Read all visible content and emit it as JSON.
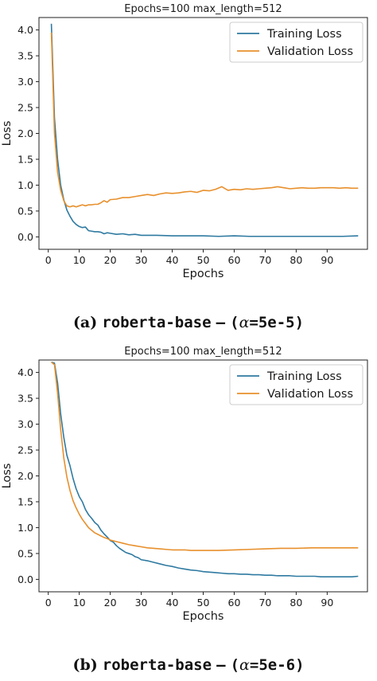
{
  "chart_data": [
    {
      "type": "line",
      "title": "Epochs=100   max_length=512",
      "xlabel": "Epochs",
      "ylabel": "Loss",
      "xlim": [
        -3,
        103
      ],
      "ylim": [
        -0.24,
        4.24
      ],
      "xticks": [
        0,
        10,
        20,
        30,
        40,
        50,
        60,
        70,
        80,
        90
      ],
      "yticks": [
        0.0,
        0.5,
        1.0,
        1.5,
        2.0,
        2.5,
        3.0,
        3.5,
        4.0
      ],
      "grid": false,
      "legend_position": "top-right",
      "series": [
        {
          "name": "Training Loss",
          "color": "#2f7aa1",
          "x": [
            1,
            2,
            3,
            4,
            5,
            6,
            7,
            8,
            9,
            10,
            11,
            12,
            13,
            14,
            15,
            16,
            17,
            18,
            19,
            20,
            22,
            24,
            26,
            28,
            30,
            35,
            40,
            45,
            50,
            55,
            60,
            65,
            70,
            75,
            80,
            85,
            90,
            95,
            100
          ],
          "y": [
            4.12,
            2.3,
            1.5,
            1.0,
            0.72,
            0.52,
            0.4,
            0.3,
            0.24,
            0.2,
            0.18,
            0.19,
            0.12,
            0.11,
            0.1,
            0.1,
            0.09,
            0.06,
            0.08,
            0.07,
            0.05,
            0.06,
            0.04,
            0.05,
            0.03,
            0.03,
            0.02,
            0.02,
            0.02,
            0.01,
            0.02,
            0.01,
            0.01,
            0.01,
            0.01,
            0.01,
            0.01,
            0.01,
            0.02
          ]
        },
        {
          "name": "Validation Loss",
          "color": "#e8902d",
          "x": [
            1,
            2,
            3,
            4,
            5,
            6,
            7,
            8,
            9,
            10,
            11,
            12,
            13,
            14,
            15,
            16,
            17,
            18,
            19,
            20,
            22,
            24,
            26,
            28,
            30,
            32,
            34,
            36,
            38,
            40,
            42,
            44,
            46,
            48,
            50,
            52,
            54,
            56,
            58,
            60,
            62,
            64,
            66,
            68,
            70,
            72,
            74,
            76,
            78,
            80,
            82,
            84,
            86,
            88,
            90,
            92,
            94,
            96,
            98,
            100
          ],
          "y": [
            3.95,
            2.0,
            1.25,
            0.9,
            0.7,
            0.6,
            0.58,
            0.6,
            0.58,
            0.6,
            0.62,
            0.6,
            0.62,
            0.62,
            0.63,
            0.63,
            0.66,
            0.7,
            0.67,
            0.72,
            0.73,
            0.76,
            0.76,
            0.78,
            0.8,
            0.82,
            0.8,
            0.83,
            0.85,
            0.84,
            0.85,
            0.87,
            0.88,
            0.86,
            0.9,
            0.89,
            0.92,
            0.97,
            0.9,
            0.92,
            0.91,
            0.93,
            0.92,
            0.93,
            0.94,
            0.95,
            0.97,
            0.95,
            0.93,
            0.94,
            0.95,
            0.94,
            0.94,
            0.95,
            0.95,
            0.95,
            0.94,
            0.95,
            0.94,
            0.94
          ]
        }
      ]
    },
    {
      "type": "line",
      "title": "Epochs=100   max_length=512",
      "xlabel": "Epochs",
      "ylabel": "Loss",
      "xlim": [
        -3,
        103
      ],
      "ylim": [
        -0.24,
        4.24
      ],
      "xticks": [
        0,
        10,
        20,
        30,
        40,
        50,
        60,
        70,
        80,
        90
      ],
      "yticks": [
        0.0,
        0.5,
        1.0,
        1.5,
        2.0,
        2.5,
        3.0,
        3.5,
        4.0
      ],
      "grid": false,
      "legend_position": "top-right",
      "series": [
        {
          "name": "Training Loss",
          "color": "#2f7aa1",
          "x": [
            1,
            2,
            3,
            4,
            5,
            6,
            7,
            8,
            9,
            10,
            11,
            12,
            13,
            14,
            15,
            16,
            17,
            18,
            19,
            20,
            21,
            22,
            23,
            24,
            25,
            26,
            27,
            28,
            29,
            30,
            32,
            34,
            36,
            38,
            40,
            42,
            44,
            46,
            48,
            50,
            52,
            54,
            56,
            58,
            60,
            62,
            64,
            66,
            68,
            70,
            72,
            74,
            76,
            78,
            80,
            82,
            84,
            86,
            88,
            90,
            92,
            94,
            96,
            98,
            100
          ],
          "y": [
            4.2,
            4.18,
            3.8,
            3.2,
            2.75,
            2.4,
            2.2,
            1.95,
            1.75,
            1.6,
            1.5,
            1.35,
            1.25,
            1.18,
            1.1,
            1.05,
            0.95,
            0.88,
            0.82,
            0.75,
            0.72,
            0.65,
            0.6,
            0.56,
            0.52,
            0.5,
            0.48,
            0.44,
            0.42,
            0.38,
            0.36,
            0.33,
            0.3,
            0.27,
            0.25,
            0.22,
            0.2,
            0.18,
            0.17,
            0.15,
            0.14,
            0.13,
            0.12,
            0.11,
            0.11,
            0.1,
            0.1,
            0.09,
            0.09,
            0.08,
            0.08,
            0.07,
            0.07,
            0.07,
            0.06,
            0.06,
            0.06,
            0.06,
            0.05,
            0.05,
            0.05,
            0.05,
            0.05,
            0.05,
            0.06
          ]
        },
        {
          "name": "Validation Loss",
          "color": "#e8902d",
          "x": [
            1,
            2,
            3,
            4,
            5,
            6,
            7,
            8,
            9,
            10,
            11,
            12,
            13,
            14,
            15,
            16,
            17,
            18,
            19,
            20,
            22,
            24,
            26,
            28,
            30,
            32,
            34,
            36,
            38,
            40,
            42,
            44,
            46,
            48,
            50,
            55,
            60,
            65,
            70,
            75,
            80,
            85,
            90,
            95,
            100
          ],
          "y": [
            4.2,
            4.15,
            3.6,
            2.9,
            2.35,
            1.98,
            1.72,
            1.52,
            1.38,
            1.26,
            1.16,
            1.08,
            1.0,
            0.95,
            0.9,
            0.87,
            0.84,
            0.81,
            0.79,
            0.76,
            0.73,
            0.7,
            0.67,
            0.65,
            0.63,
            0.61,
            0.6,
            0.59,
            0.58,
            0.57,
            0.57,
            0.57,
            0.56,
            0.56,
            0.56,
            0.56,
            0.57,
            0.58,
            0.59,
            0.6,
            0.6,
            0.61,
            0.61,
            0.61,
            0.61
          ]
        }
      ]
    }
  ],
  "captions": [
    {
      "tag": "(a)",
      "model": "roberta-base",
      "sep": "–",
      "paren_open": "(",
      "alpha": "α",
      "eq": "=5e-5",
      "paren_close": ")"
    },
    {
      "tag": "(b)",
      "model": "roberta-base",
      "sep": "–",
      "paren_open": "(",
      "alpha": "α",
      "eq": "=5e-6",
      "paren_close": ")"
    }
  ]
}
